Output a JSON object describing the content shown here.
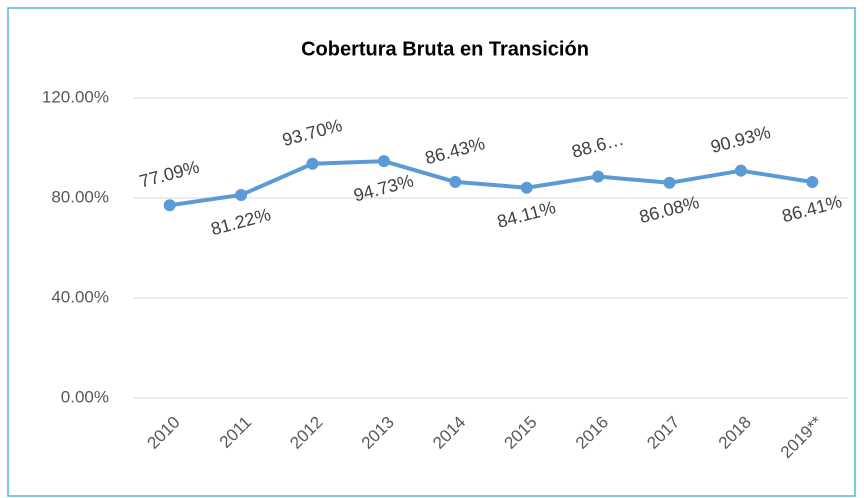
{
  "chart_data": {
    "type": "line",
    "title": "Cobertura Bruta en Transición",
    "categories": [
      "2010",
      "2011",
      "2012",
      "2013",
      "2014",
      "2015",
      "2016",
      "2017",
      "2018",
      "2019**"
    ],
    "series": [
      {
        "name": "Cobertura Bruta",
        "color": "#5b9bd5",
        "values": [
          77.09,
          81.22,
          93.7,
          94.73,
          86.43,
          84.11,
          88.6,
          86.08,
          90.93,
          86.41
        ],
        "value_labels": [
          "77.09%",
          "81.22%",
          "93.70%",
          "94.73%",
          "86.43%",
          "84.11%",
          "88.6…",
          "86.08%",
          "90.93%",
          "86.41%"
        ]
      }
    ],
    "ylim": [
      0,
      120
    ],
    "yticks": [
      {
        "value": 0,
        "label": "0.00%"
      },
      {
        "value": 40,
        "label": "40.00%"
      },
      {
        "value": 80,
        "label": "80.00%"
      },
      {
        "value": 120,
        "label": "120.00%"
      }
    ],
    "grid": true
  }
}
